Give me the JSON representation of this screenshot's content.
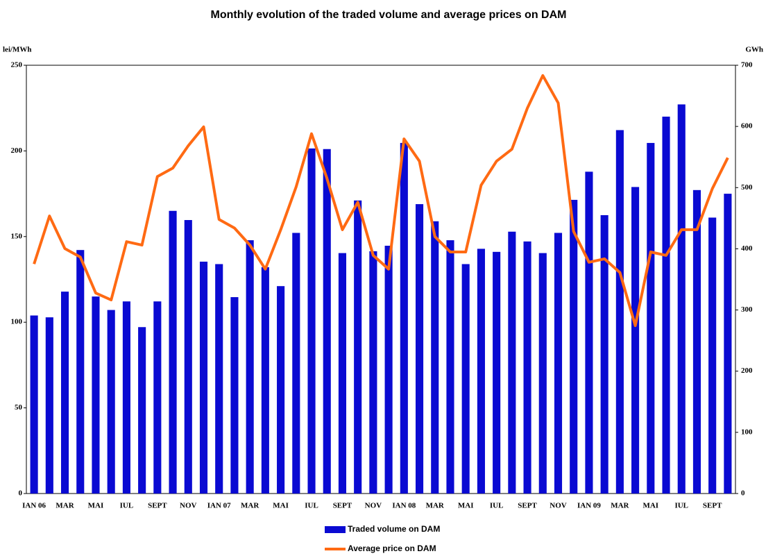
{
  "chart_data": {
    "type": "bar-line",
    "title": "Monthly evolution of the traded volume and average prices on DAM",
    "y_label": "lei/MWh",
    "y2_label": "GWh",
    "categories": [
      "IAN 06",
      null,
      "MAR",
      null,
      "MAI",
      null,
      "IUL",
      null,
      "SEPT",
      null,
      "NOV",
      null,
      "IAN 07",
      null,
      "MAR",
      null,
      "MAI",
      null,
      "IUL",
      null,
      "SEPT",
      null,
      "NOV",
      null,
      "IAN 08",
      null,
      "MAR",
      null,
      "MAI",
      null,
      "IUL",
      null,
      "SEPT",
      null,
      "NOV",
      null,
      "IAN 09",
      null,
      "MAR",
      null,
      "MAI",
      null,
      "IUL",
      null,
      "SEPT",
      null
    ],
    "series": [
      {
        "name": "Traded volume on DAM",
        "type": "bar",
        "axis": "y2",
        "color": "#0a0ad2",
        "values": [
          291,
          288,
          330,
          398,
          322,
          300,
          314,
          272,
          314,
          462,
          447,
          379,
          375,
          321,
          414,
          370,
          339,
          426,
          564,
          563,
          393,
          479,
          396,
          405,
          573,
          473,
          445,
          414,
          375,
          400,
          395,
          428,
          412,
          393,
          426,
          480,
          526,
          455,
          594,
          501,
          573,
          616,
          636,
          496,
          451,
          490
        ]
      },
      {
        "name": "Average price on DAM",
        "type": "line",
        "axis": "y",
        "color": "#ff6a13",
        "values": [
          134,
          162,
          143,
          138,
          117,
          113,
          147,
          145,
          185,
          190,
          203,
          214,
          160,
          155,
          145,
          131,
          154,
          179,
          210,
          184,
          154,
          170,
          139,
          131,
          207,
          194,
          150,
          141,
          141,
          180,
          194,
          201,
          225,
          244,
          228,
          153,
          135,
          137,
          129,
          98,
          141,
          139,
          154,
          154,
          178,
          196
        ]
      }
    ],
    "ylim": [
      0,
      250
    ],
    "yticks": [
      0,
      50,
      100,
      150,
      200,
      250
    ],
    "y2lim": [
      0,
      700
    ],
    "y2ticks": [
      0,
      100,
      200,
      300,
      400,
      500,
      600,
      700
    ]
  }
}
